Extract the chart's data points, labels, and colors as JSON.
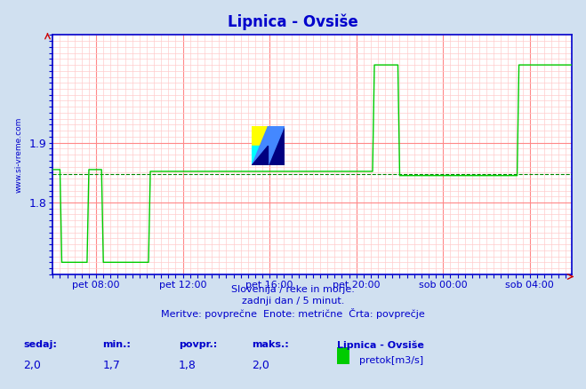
{
  "title": "Lipnica - Ovsiše",
  "bg_color": "#d0e0f0",
  "plot_bg_color": "#ffffff",
  "grid_color_major": "#ff8888",
  "grid_color_minor": "#ffcccc",
  "line_color": "#00cc00",
  "avg_line_color": "#008800",
  "axis_color": "#0000cc",
  "text_color": "#0000cc",
  "ylabel_text": "www.si-vreme.com",
  "subtitle1": "Slovenija / reke in morje.",
  "subtitle2": "zadnji dan / 5 minut.",
  "subtitle3": "Meritve: povprečne  Enote: metrične  Črta: povprečje",
  "bottom_labels": [
    "sedaj:",
    "min.:",
    "povpr.:",
    "maks.:"
  ],
  "bottom_values": [
    "2,0",
    "1,7",
    "1,8",
    "2,0"
  ],
  "legend_title": "Lipnica - Ovsiše",
  "legend_label": "pretok[m3/s]",
  "legend_color": "#00cc00",
  "ylim_min": 1.68,
  "ylim_max": 2.08,
  "yticks": [
    1.8,
    1.9
  ],
  "avg_value": 1.848,
  "x_tick_labels": [
    "pet 08:00",
    "pet 12:00",
    "pet 16:00",
    "pet 20:00",
    "sob 00:00",
    "sob 04:00"
  ],
  "total_points": 288,
  "watermark": "www.si-vreme.com"
}
